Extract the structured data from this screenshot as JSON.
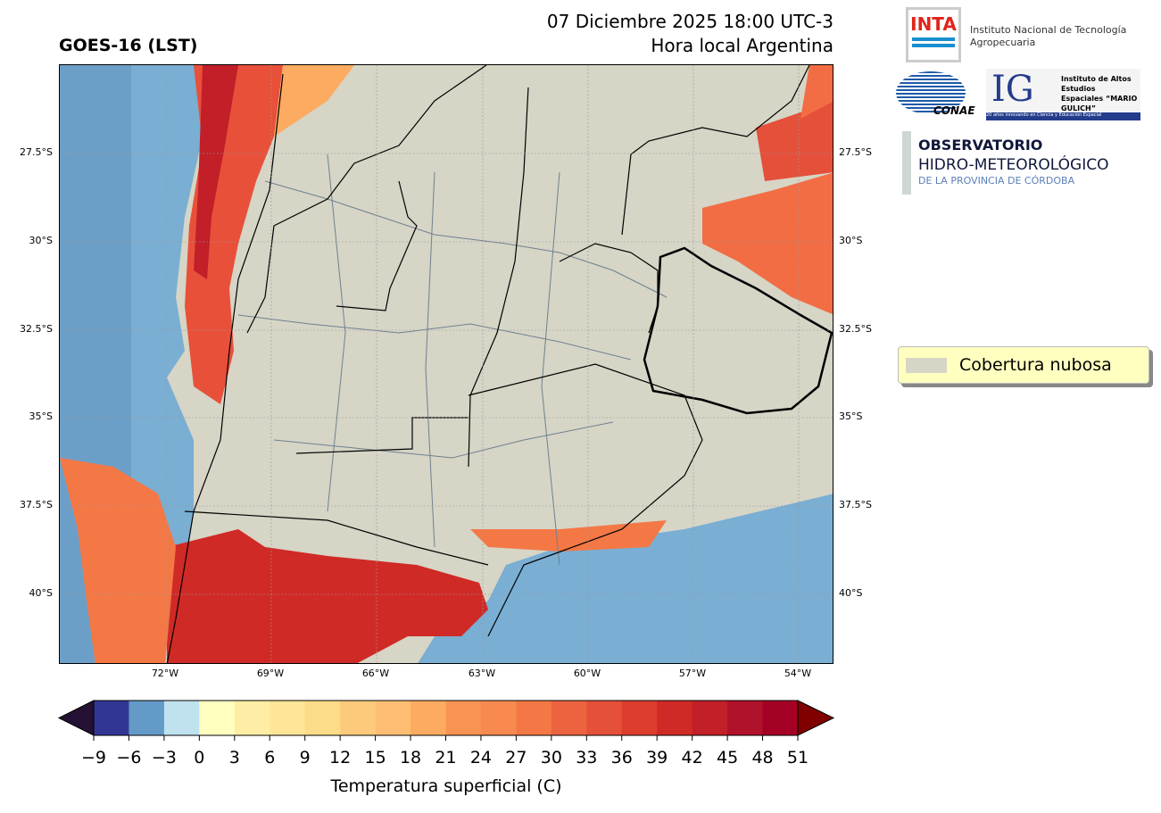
{
  "header": {
    "title_left": "GOES-16 (LST)",
    "datetime": "07 Diciembre 2025 18:00 UTC-3",
    "subtitle": "Hora local Argentina"
  },
  "map": {
    "lat_ticks": [
      "27.5°S",
      "30°S",
      "32.5°S",
      "35°S",
      "37.5°S",
      "40°S"
    ],
    "lon_ticks": [
      "72°W",
      "69°W",
      "66°W",
      "63°W",
      "60°W",
      "57°W",
      "54°W"
    ],
    "land_color": "#d6d5c6"
  },
  "legend": {
    "label": "Cobertura nubosa"
  },
  "colorbar": {
    "label": "Temperatura superficial (C)",
    "ticks": [
      "−9",
      "−6",
      "−3",
      "0",
      "3",
      "6",
      "9",
      "12",
      "15",
      "18",
      "21",
      "24",
      "27",
      "30",
      "33",
      "36",
      "39",
      "42",
      "45",
      "48",
      "51"
    ],
    "colors": [
      "#313695",
      "#649ac7",
      "#bfe2ee",
      "#ffffc0",
      "#feeea5",
      "#fee597",
      "#fddc89",
      "#fdca7c",
      "#fdbe74",
      "#fdab61",
      "#f99354",
      "#f88a50",
      "#f47845",
      "#ec6340",
      "#e5503a",
      "#dd3d2d",
      "#d02a26",
      "#c21f28",
      "#b0112b",
      "#a50026"
    ],
    "under_color": "#241133",
    "over_color": "#800000"
  },
  "logos": {
    "inta": "INTA",
    "inta_name": "Instituto Nacional de Tecnología Agropecuaria",
    "conae": "CONAE",
    "ig": "IG",
    "ig_name": "Instituto de Altos Estudios Espaciales “MARIO GULICH”",
    "ig_tagline": "20 años innovando en Ciencia y Educación Espacial",
    "obs1": "OBSERVATORIO",
    "obs2": "HIDRO-METEOROLÓGICO",
    "obs3": "DE LA PROVINCIA DE CÓRDOBA"
  }
}
